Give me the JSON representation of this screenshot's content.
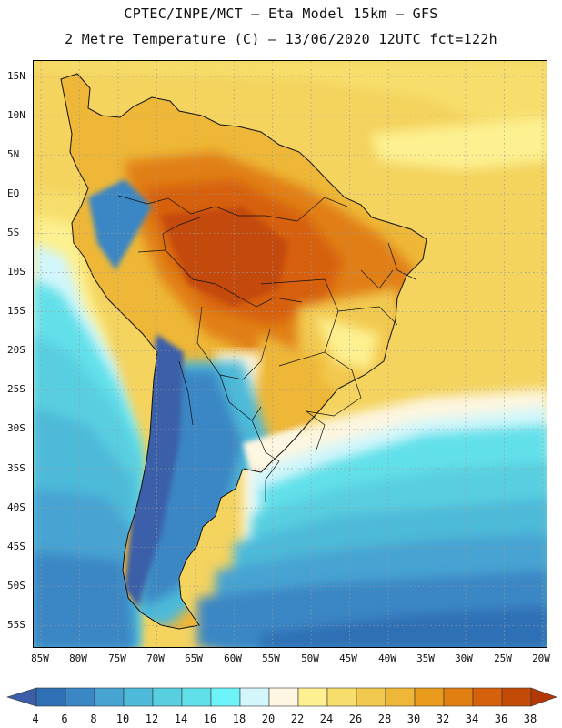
{
  "header": {
    "line1": "CPTEC/INPE/MCT –  Eta Model 15km – GFS",
    "line2": "2 Metre Temperature (C) – 13/06/2020 12UTC fct=122h"
  },
  "axes": {
    "latitudes": [
      "15N",
      "10N",
      "5N",
      "EQ",
      "5S",
      "10S",
      "15S",
      "20S",
      "25S",
      "30S",
      "35S",
      "40S",
      "45S",
      "50S",
      "55S"
    ],
    "longitudes": [
      "85W",
      "80W",
      "75W",
      "70W",
      "65W",
      "60W",
      "55W",
      "50W",
      "45W",
      "40W",
      "35W",
      "30W",
      "25W",
      "20W"
    ]
  },
  "legend": {
    "values": [
      "4",
      "6",
      "8",
      "10",
      "12",
      "14",
      "16",
      "18",
      "20",
      "22",
      "24",
      "26",
      "28",
      "30",
      "32",
      "34",
      "36",
      "38"
    ],
    "colors": [
      "#3a5fa8",
      "#2f6fb5",
      "#3b86c4",
      "#46a3d2",
      "#4dbad9",
      "#58cfe0",
      "#62e0ea",
      "#6cf4f9",
      "#d2f6fb",
      "#fdf6e0",
      "#fdf090",
      "#f7de6c",
      "#f2c94f",
      "#eeb737",
      "#e99b1c",
      "#e17f12",
      "#d6610c",
      "#c44a07",
      "#b43805"
    ]
  },
  "colors": {
    "ocean_warm": "#f4d35e",
    "ocean_mid": "#fdf6e0",
    "ocean_cool": "#58cfe0",
    "ocean_cold": "#2f6fb5",
    "amazon_hot": "#c44a07",
    "andes_cold": "#3a5fa8"
  }
}
